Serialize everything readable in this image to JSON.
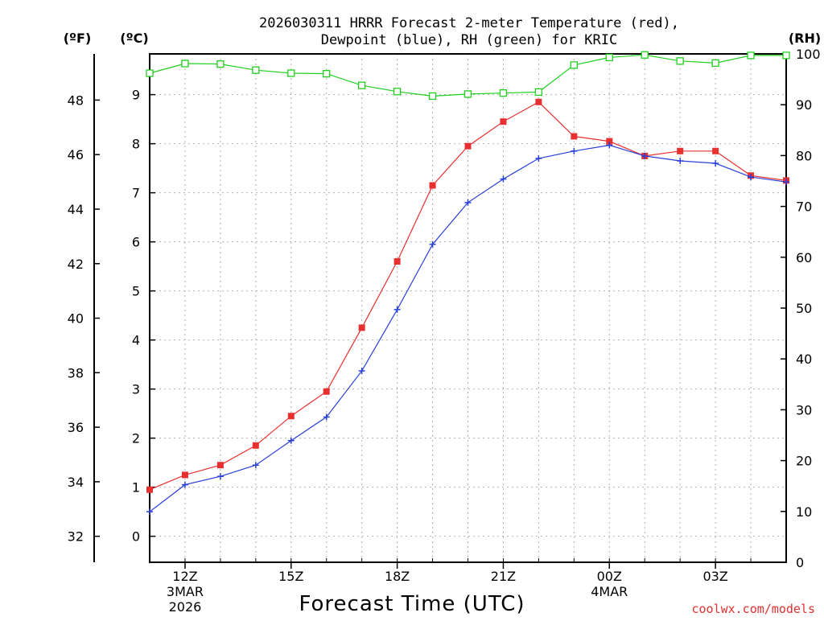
{
  "chart_data": {
    "type": "line",
    "title_line1": "2026030311 HRRR Forecast 2-meter Temperature (red),",
    "title_line2": "Dewpoint (blue), RH (green) for KRIC",
    "xlabel": "Forecast Time (UTC)",
    "credit": "coolwx.com/models",
    "units": {
      "left_f": "(ºF)",
      "left_c": "(ºC)",
      "right": "(RH)"
    },
    "x_hours": [
      11,
      12,
      13,
      14,
      15,
      16,
      17,
      18,
      19,
      20,
      21,
      22,
      23,
      24,
      25,
      26,
      27,
      28,
      29
    ],
    "x_range": [
      11,
      29
    ],
    "x_ticks": [
      {
        "hour": 12,
        "label": "12Z",
        "sub1": "3MAR",
        "sub2": "2026"
      },
      {
        "hour": 15,
        "label": "15Z",
        "sub1": "",
        "sub2": ""
      },
      {
        "hour": 18,
        "label": "18Z",
        "sub1": "",
        "sub2": ""
      },
      {
        "hour": 21,
        "label": "21Z",
        "sub1": "",
        "sub2": ""
      },
      {
        "hour": 24,
        "label": "00Z",
        "sub1": "4MAR",
        "sub2": ""
      },
      {
        "hour": 27,
        "label": "03Z",
        "sub1": "",
        "sub2": ""
      }
    ],
    "c_range": [
      -0.53,
      9.83
    ],
    "rh_range": [
      0,
      100
    ],
    "c_ticks": [
      "0",
      "1",
      "2",
      "3",
      "4",
      "5",
      "6",
      "7",
      "8",
      "9"
    ],
    "f_ticks": [
      "32",
      "34",
      "36",
      "38",
      "40",
      "42",
      "44",
      "46",
      "48"
    ],
    "rh_ticks": [
      "0",
      "10",
      "20",
      "30",
      "40",
      "50",
      "60",
      "70",
      "80",
      "90",
      "100"
    ],
    "series": [
      {
        "name": "Temperature",
        "color": "#e83030",
        "marker": "filled-square",
        "values": [
          0.95,
          1.25,
          1.45,
          1.85,
          2.45,
          2.95,
          4.25,
          5.6,
          7.15,
          7.95,
          8.45,
          8.85,
          8.15,
          8.05,
          7.75,
          7.85,
          7.85,
          7.35,
          7.25
        ]
      },
      {
        "name": "Dewpoint",
        "color": "#2840d8",
        "marker": "plus",
        "values": [
          0.5,
          1.05,
          1.22,
          1.45,
          1.95,
          2.43,
          3.37,
          4.62,
          5.95,
          6.8,
          7.28,
          7.7,
          7.85,
          7.97,
          7.75,
          7.65,
          7.6,
          7.32,
          7.22
        ]
      },
      {
        "name": "RH",
        "color": "#20d020",
        "marker": "open-square",
        "values": [
          96.2,
          98.1,
          98.0,
          96.8,
          96.2,
          96.1,
          93.8,
          92.6,
          91.7,
          92.1,
          92.3,
          92.5,
          97.8,
          99.3,
          99.8,
          98.6,
          98.2,
          99.7,
          99.7
        ]
      }
    ]
  }
}
